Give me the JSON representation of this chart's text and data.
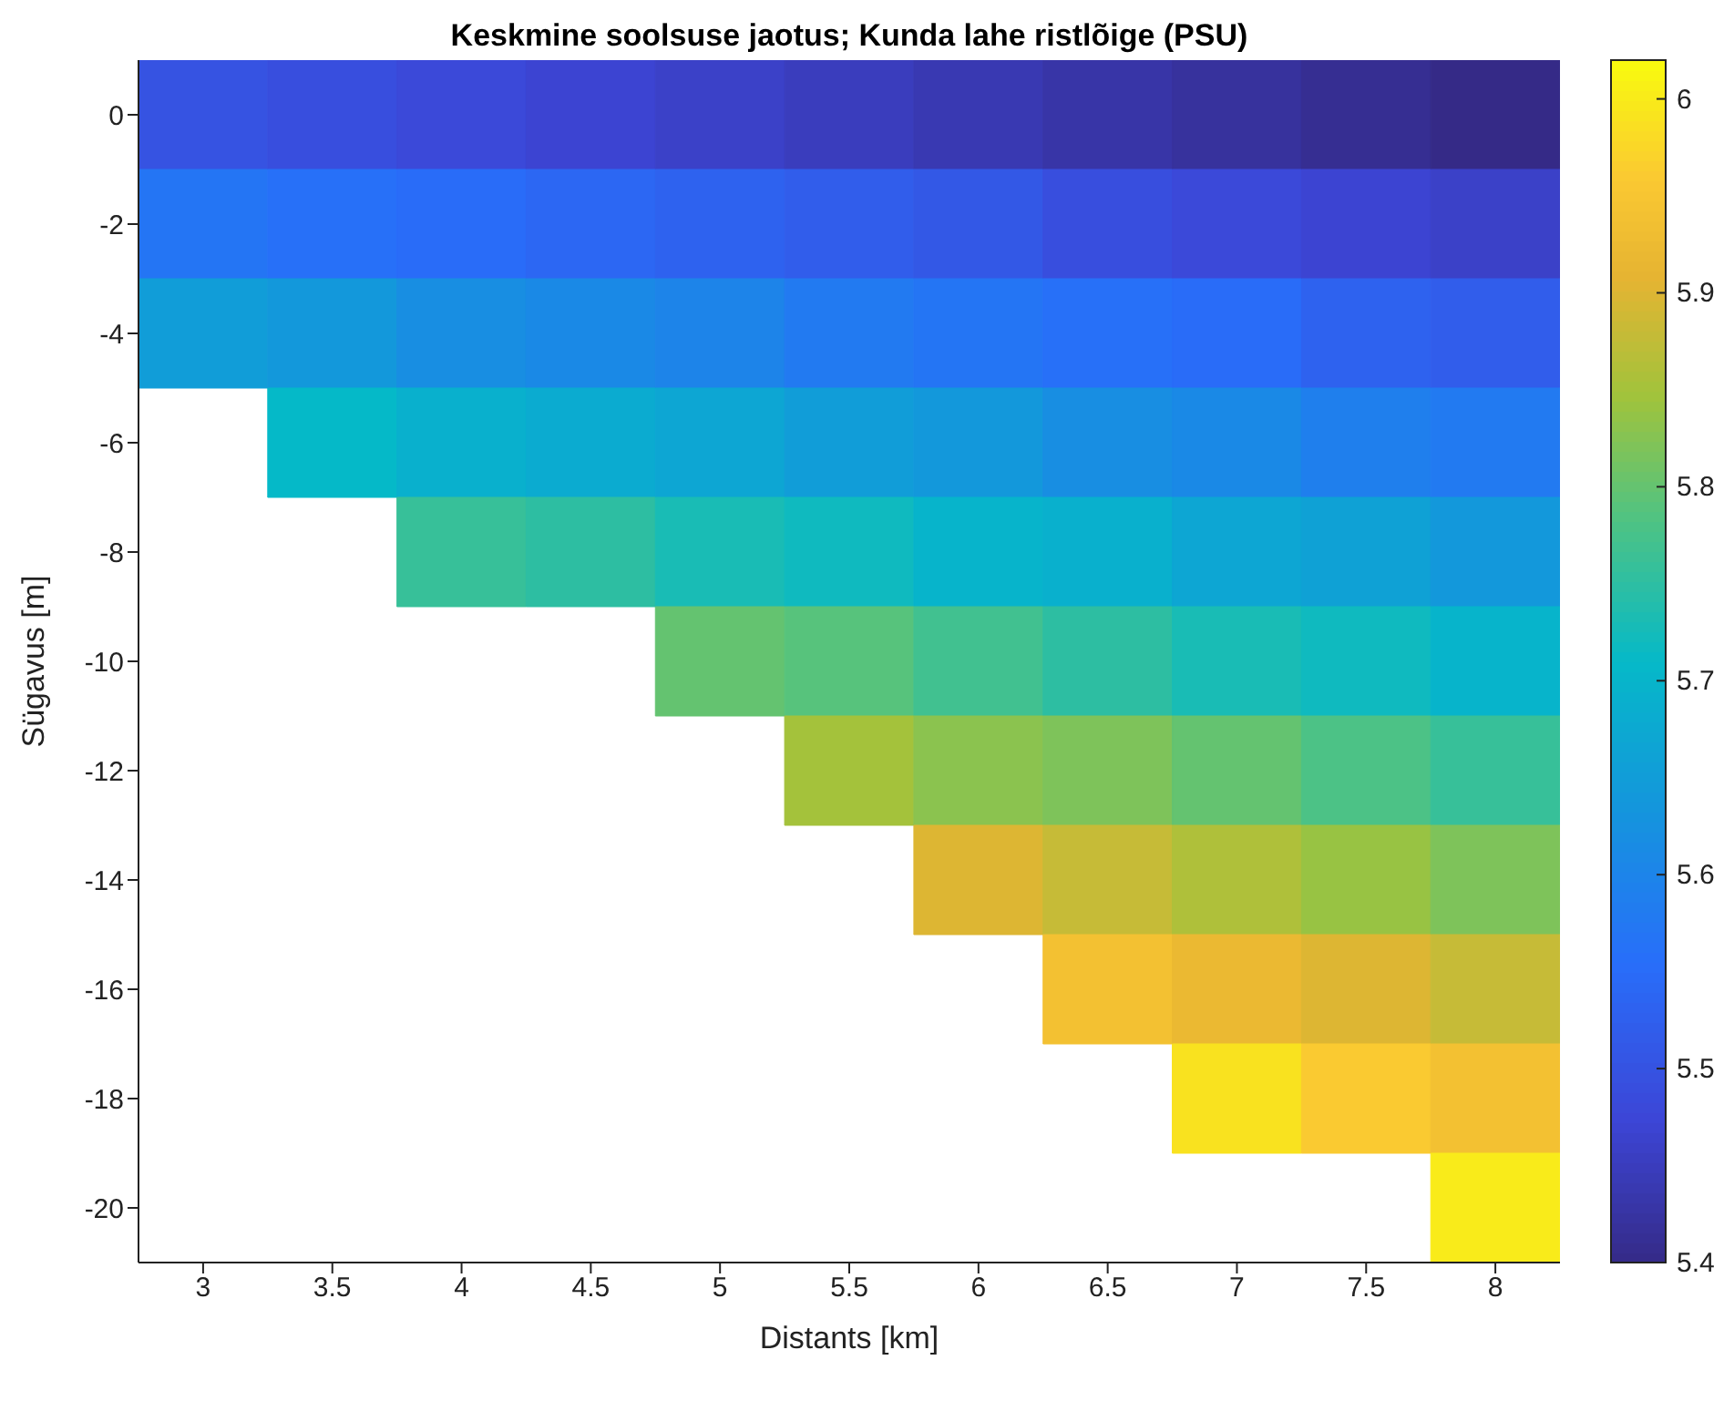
{
  "chart_data": {
    "type": "heatmap",
    "title": "Keskmine soolsuse jaotus; Kunda lahe ristlõige (PSU)",
    "xlabel": "Distants [km]",
    "ylabel": "Sügavus [m]",
    "categories": [
      "3",
      "3.5",
      "4",
      "4.5",
      "5",
      "5.5",
      "6",
      "6.5",
      "7",
      "7.5",
      "8"
    ],
    "y_categories": [
      "0",
      "-2",
      "-4",
      "-6",
      "-8",
      "-10",
      "-12",
      "-14",
      "-16",
      "-18",
      "-20"
    ],
    "cells": [
      [
        5.5,
        5.49,
        5.48,
        5.47,
        5.46,
        5.45,
        5.44,
        5.43,
        5.42,
        5.41,
        5.4
      ],
      [
        5.57,
        5.56,
        5.55,
        5.54,
        5.53,
        5.52,
        5.51,
        5.49,
        5.48,
        5.47,
        5.46
      ],
      [
        5.65,
        5.64,
        5.62,
        5.61,
        5.6,
        5.58,
        5.57,
        5.56,
        5.55,
        5.53,
        5.52
      ],
      [
        null,
        5.71,
        5.69,
        5.68,
        5.67,
        5.65,
        5.64,
        5.62,
        5.61,
        5.59,
        5.58
      ],
      [
        null,
        null,
        5.76,
        5.75,
        5.73,
        5.72,
        5.7,
        5.69,
        5.67,
        5.66,
        5.64
      ],
      [
        null,
        null,
        null,
        null,
        5.8,
        5.79,
        5.77,
        5.75,
        5.73,
        5.72,
        5.7
      ],
      [
        null,
        null,
        null,
        null,
        null,
        5.85,
        5.83,
        5.82,
        5.8,
        5.78,
        5.76
      ],
      [
        null,
        null,
        null,
        null,
        null,
        null,
        5.9,
        5.88,
        5.86,
        5.84,
        5.82
      ],
      [
        null,
        null,
        null,
        null,
        null,
        null,
        null,
        5.94,
        5.92,
        5.9,
        5.88
      ],
      [
        null,
        null,
        null,
        null,
        null,
        null,
        null,
        null,
        5.99,
        5.96,
        5.94
      ],
      [
        null,
        null,
        null,
        null,
        null,
        null,
        null,
        null,
        null,
        null,
        6.0
      ]
    ],
    "clim": [
      5.4,
      6.02
    ],
    "cticks": [
      5.4,
      5.5,
      5.6,
      5.7,
      5.8,
      5.9,
      6
    ]
  }
}
